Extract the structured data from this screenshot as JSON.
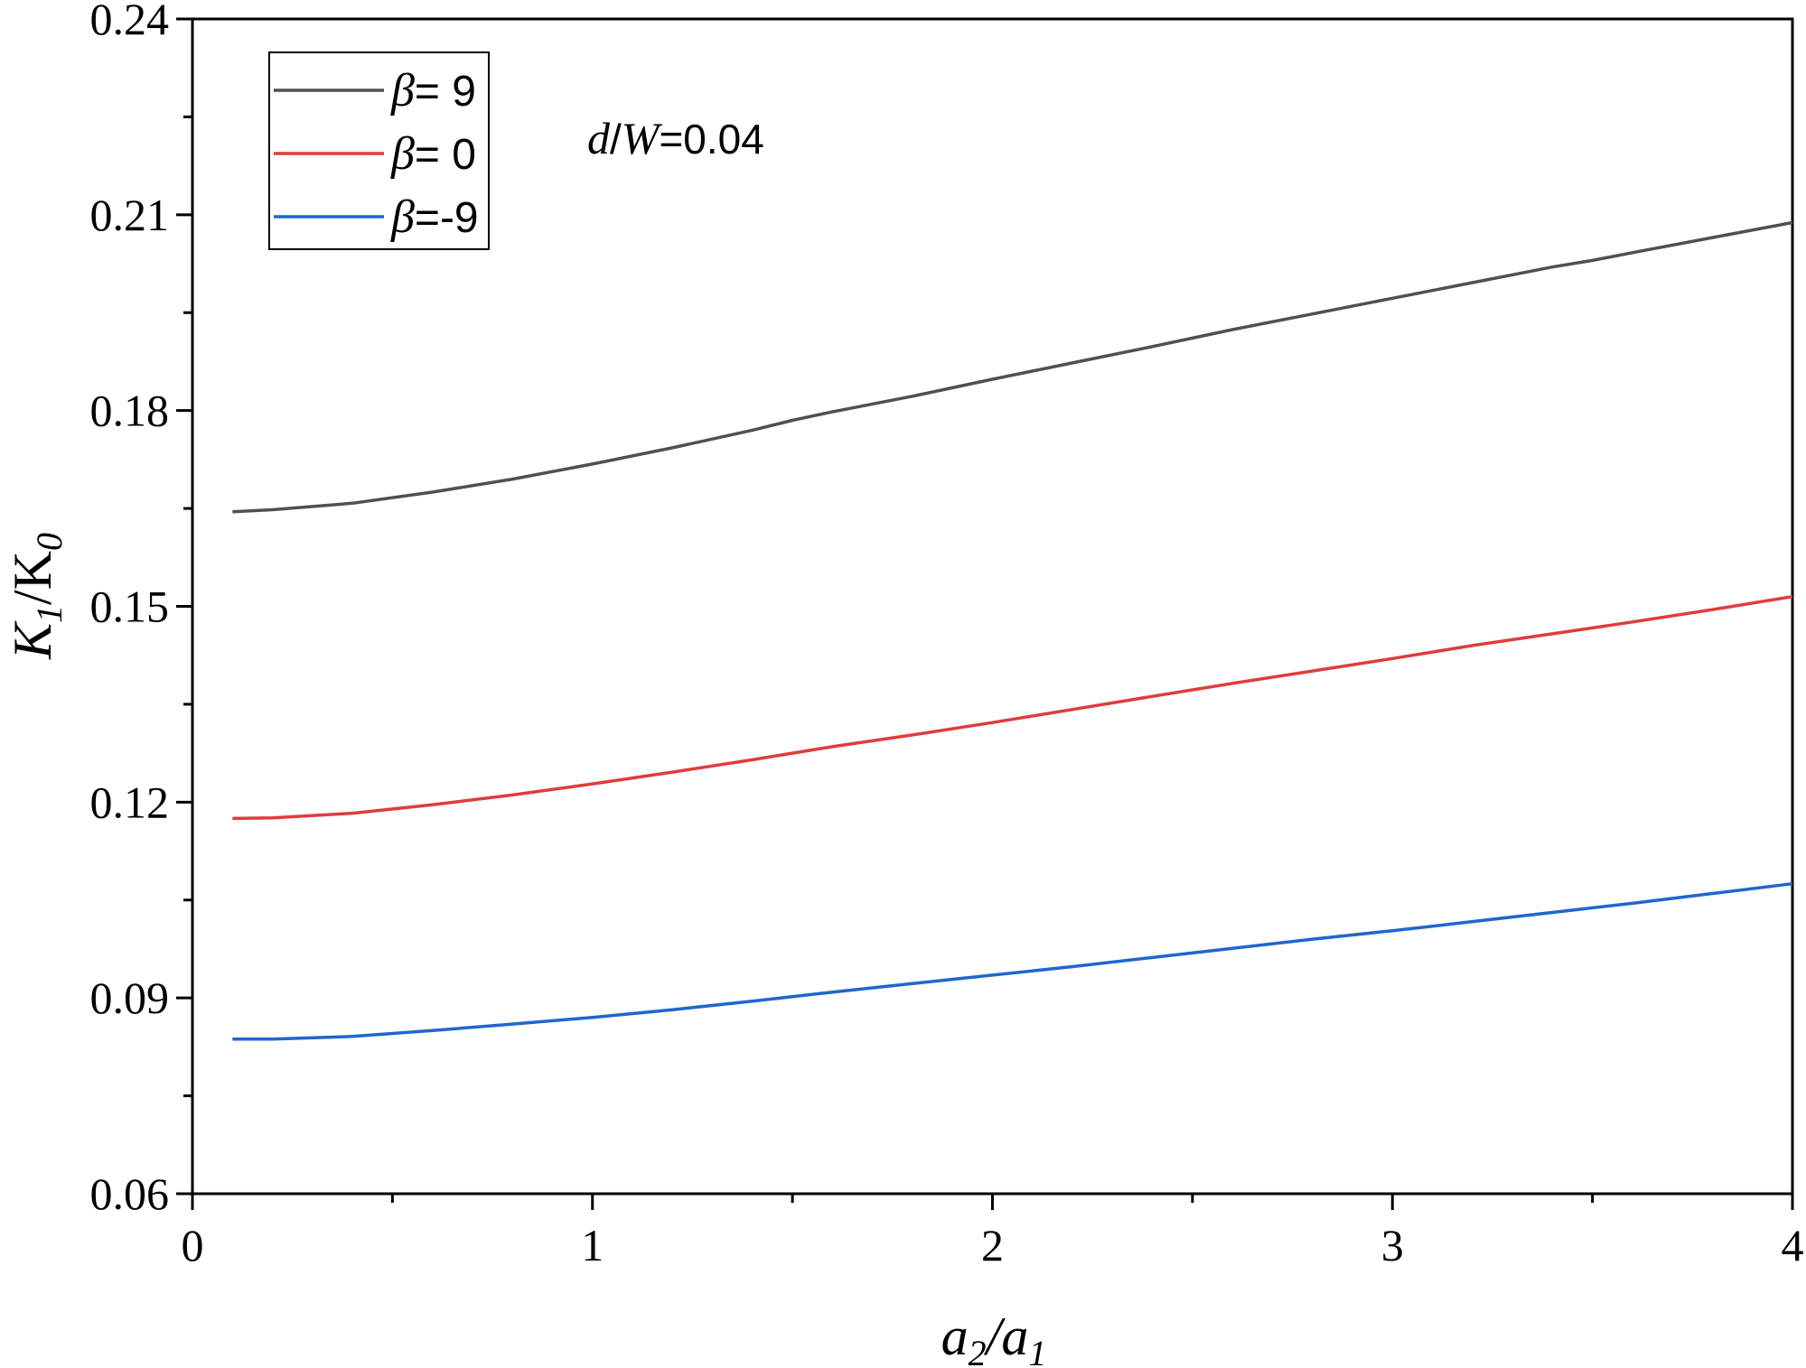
{
  "chart_data": {
    "type": "line",
    "xlabel": "a2/a1",
    "ylabel": "K1/K0",
    "xlim": [
      0,
      4
    ],
    "ylim": [
      0.06,
      0.24
    ],
    "x_ticks": [
      0,
      1,
      2,
      3,
      4
    ],
    "x_tick_labels": [
      "0",
      "1",
      "2",
      "3",
      "4"
    ],
    "y_ticks": [
      0.06,
      0.09,
      0.12,
      0.15,
      0.18,
      0.21,
      0.24
    ],
    "y_tick_labels": [
      "0.06",
      "0.09",
      "0.12",
      "0.15",
      "0.18",
      "0.21",
      "0.24"
    ],
    "grid": false,
    "legend_position": "top-left",
    "annotation": "d/W=0.04",
    "series": [
      {
        "name": "β= 9",
        "color": "#505050",
        "x": [
          0.1,
          0.2,
          0.4,
          0.6,
          0.8,
          1.0,
          1.2,
          1.4,
          1.5,
          1.6,
          1.8,
          2.0,
          2.2,
          2.4,
          2.6,
          2.8,
          3.0,
          3.1,
          3.2,
          3.4,
          3.5,
          3.6,
          3.8,
          4.0
        ],
        "values": [
          0.1645,
          0.1648,
          0.1658,
          0.1675,
          0.1695,
          0.1718,
          0.1743,
          0.177,
          0.1785,
          0.1798,
          0.1822,
          0.1848,
          0.1873,
          0.1898,
          0.1924,
          0.1948,
          0.1972,
          0.1984,
          0.1996,
          0.202,
          0.203,
          0.2042,
          0.2065,
          0.2088
        ]
      },
      {
        "name": "β= 0",
        "color": "#e03c3c",
        "x": [
          0.1,
          0.2,
          0.4,
          0.6,
          0.8,
          1.0,
          1.2,
          1.4,
          1.5,
          1.6,
          1.8,
          2.0,
          2.2,
          2.4,
          2.6,
          2.8,
          3.0,
          3.1,
          3.2,
          3.4,
          3.5,
          3.6,
          3.8,
          4.0
        ],
        "values": [
          0.1175,
          0.1176,
          0.1183,
          0.1196,
          0.1211,
          0.1228,
          0.1246,
          0.1265,
          0.1275,
          0.1285,
          0.1303,
          0.1322,
          0.1342,
          0.1362,
          0.1382,
          0.1401,
          0.142,
          0.143,
          0.144,
          0.1458,
          0.1467,
          0.1476,
          0.1495,
          0.1515
        ]
      },
      {
        "name": "β=-9",
        "color": "#1f66d0",
        "x": [
          0.1,
          0.2,
          0.4,
          0.6,
          0.8,
          1.0,
          1.2,
          1.4,
          1.5,
          1.6,
          1.8,
          2.0,
          2.2,
          2.4,
          2.6,
          2.8,
          3.0,
          3.1,
          3.2,
          3.4,
          3.5,
          3.6,
          3.8,
          4.0
        ],
        "values": [
          0.0837,
          0.0837,
          0.0841,
          0.085,
          0.086,
          0.087,
          0.0882,
          0.0895,
          0.0902,
          0.0909,
          0.0922,
          0.0935,
          0.0948,
          0.0962,
          0.0976,
          0.099,
          0.1003,
          0.101,
          0.1017,
          0.1031,
          0.1038,
          0.1045,
          0.106,
          0.1075
        ]
      }
    ]
  }
}
